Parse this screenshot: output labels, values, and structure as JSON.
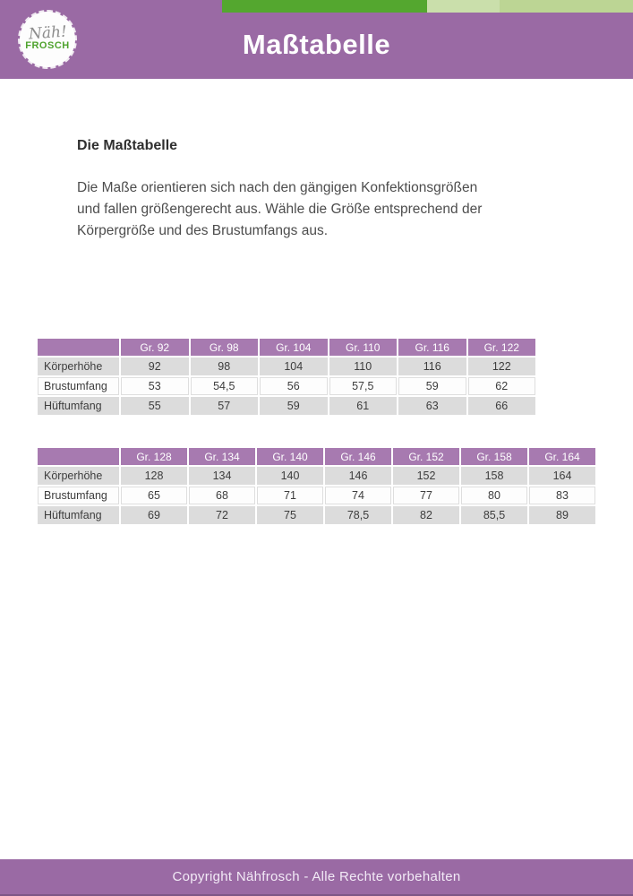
{
  "header": {
    "title": "Maßtabelle",
    "logo_line1": "Näh!",
    "logo_line2": "FROSCH"
  },
  "intro": {
    "heading": "Die Maßtabelle",
    "lines": [
      "Die Maße orientieren sich nach den gängigen Konfektionsgrößen",
      "und fallen größengerecht aus. Wähle die Größe entsprechend der",
      "Körpergröße und des Brustumfangs aus."
    ]
  },
  "tables": [
    {
      "columns": [
        "",
        "Gr. 92",
        "Gr. 98",
        "Gr. 104",
        "Gr. 110",
        "Gr. 116",
        "Gr. 122"
      ],
      "rows": [
        {
          "label": "Körperhöhe",
          "values": [
            "92",
            "98",
            "104",
            "110",
            "116",
            "122"
          ]
        },
        {
          "label": "Brustumfang",
          "values": [
            "53",
            "54,5",
            "56",
            "57,5",
            "59",
            "62"
          ]
        },
        {
          "label": "Hüftumfang",
          "values": [
            "55",
            "57",
            "59",
            "61",
            "63",
            "66"
          ]
        }
      ]
    },
    {
      "columns": [
        "",
        "Gr. 128",
        "Gr. 134",
        "Gr. 140",
        "Gr. 146",
        "Gr. 152",
        "Gr. 158",
        "Gr. 164"
      ],
      "rows": [
        {
          "label": "Körperhöhe",
          "values": [
            "128",
            "134",
            "140",
            "146",
            "152",
            "158",
            "164"
          ]
        },
        {
          "label": "Brustumfang",
          "values": [
            "65",
            "68",
            "71",
            "74",
            "77",
            "80",
            "83"
          ]
        },
        {
          "label": "Hüftumfang",
          "values": [
            "69",
            "72",
            "75",
            "78,5",
            "82",
            "85,5",
            "89"
          ]
        }
      ]
    }
  ],
  "footer": {
    "text": "Copyright Nähfrosch - Alle Rechte vorbehalten"
  },
  "colors": {
    "purple": "#9a6aa4",
    "table_header_purple": "#a77ab0",
    "green_dark": "#54a72f",
    "green_light_1": "#cadfab",
    "green_light_2": "#bcd594",
    "row_gray": "#dcdcdc",
    "row_white": "#fdfdfd",
    "hairline": "#dedede",
    "text_dark": "#3d3d3d",
    "text_body": "#4d4d4d"
  }
}
